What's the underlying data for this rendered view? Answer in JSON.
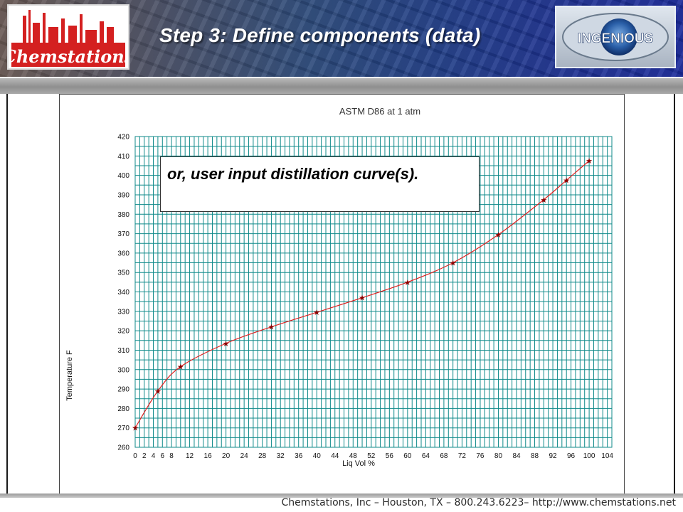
{
  "slide": {
    "title": "Step 3:  Define components (data)",
    "callout": "or, user input distillation curve(s).",
    "footer": "Chemstations, Inc – Houston, TX – 800.243.6223– http://www.chemstations.net"
  },
  "logos": {
    "left_text": "Chemstations",
    "right_text": "INGENIOUS"
  },
  "colors": {
    "grid": "#0f8a8a",
    "curve": "#e02020",
    "marker": "#8b0000"
  },
  "chart_data": {
    "type": "line",
    "title": "ASTM D86 at 1 atm",
    "xlabel": "Liq Vol %",
    "ylabel": "Temperature F",
    "xlim": [
      0,
      105
    ],
    "ylim": [
      260,
      420
    ],
    "x_ticks": [
      "0",
      "2",
      "4",
      "6",
      "8",
      "12",
      "16",
      "20",
      "24",
      "28",
      "32",
      "36",
      "40",
      "44",
      "48",
      "52",
      "56",
      "60",
      "64",
      "68",
      "72",
      "76",
      "80",
      "84",
      "88",
      "92",
      "96",
      "100",
      "104"
    ],
    "y_ticks": [
      "260",
      "270",
      "280",
      "290",
      "300",
      "310",
      "320",
      "330",
      "340",
      "350",
      "360",
      "370",
      "380",
      "390",
      "400",
      "410",
      "420"
    ],
    "grid": true,
    "series": [
      {
        "x": [
          0,
          5,
          10,
          20,
          30,
          40,
          50,
          60,
          70,
          80,
          90,
          95,
          100
        ],
        "values": [
          270,
          289,
          301.5,
          313.5,
          322,
          329.5,
          337,
          345,
          355,
          369.5,
          387.5,
          397.5,
          407.5
        ]
      }
    ]
  }
}
